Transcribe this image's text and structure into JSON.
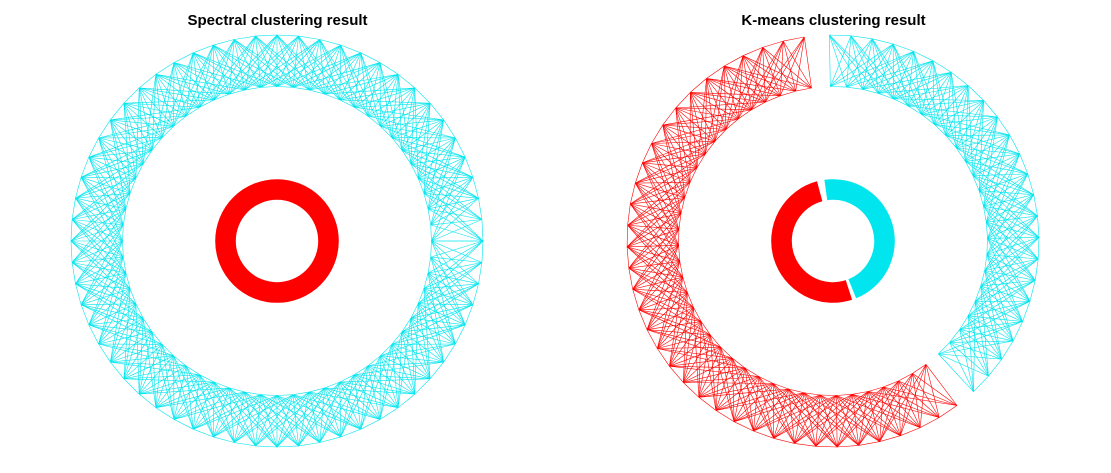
{
  "chart_data": [
    {
      "type": "scatter",
      "title": "Spectral clustering result",
      "xlabel": "",
      "ylabel": "",
      "grid": false,
      "rings": [
        {
          "name": "outer ring",
          "r_inner": 0.75,
          "r_outer": 1.0,
          "n": 60
        },
        {
          "name": "inner ring",
          "r_inner": 0.2,
          "r_outer": 0.3,
          "n": 60
        }
      ],
      "clusters": [
        {
          "ring": 0,
          "start_deg": 0,
          "end_deg": 360,
          "color": "#00e5ee"
        },
        {
          "ring": 1,
          "start_deg": 0,
          "end_deg": 360,
          "color": "#ff0000"
        }
      ]
    },
    {
      "type": "scatter",
      "title": "K-means clustering result",
      "xlabel": "",
      "ylabel": "",
      "grid": false,
      "rings": [
        {
          "name": "outer ring",
          "r_inner": 0.75,
          "r_outer": 1.0,
          "n": 60
        },
        {
          "name": "inner ring",
          "r_inner": 0.2,
          "r_outer": 0.3,
          "n": 60
        }
      ],
      "clusters": [
        {
          "ring": 0,
          "start_deg": 98,
          "end_deg": 307,
          "color": "#ff0000"
        },
        {
          "ring": 0,
          "start_deg": -47,
          "end_deg": 91,
          "color": "#00e5ee"
        },
        {
          "ring": 1,
          "start_deg": 105,
          "end_deg": 288,
          "color": "#ff0000"
        },
        {
          "ring": 1,
          "start_deg": -68,
          "end_deg": 98,
          "color": "#00e5ee"
        }
      ]
    }
  ]
}
